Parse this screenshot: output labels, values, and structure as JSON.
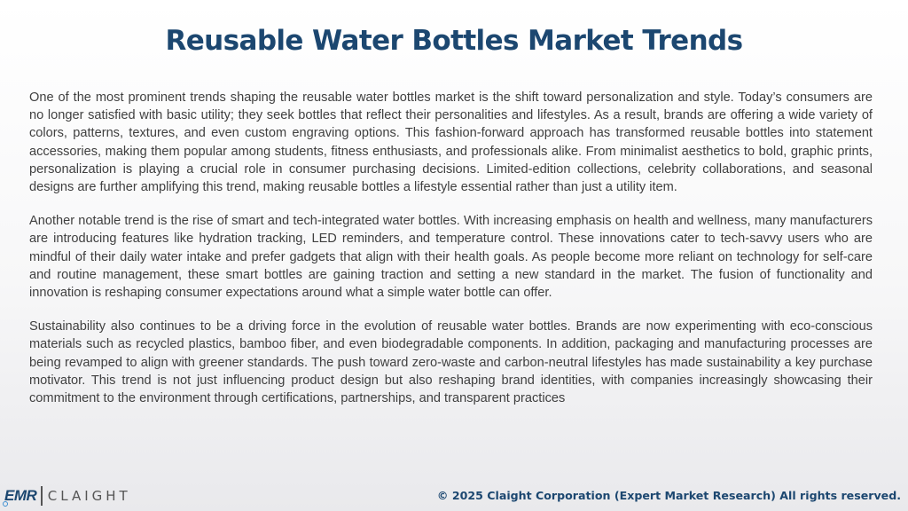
{
  "title": "Reusable Water Bottles Market Trends",
  "paragraphs": [
    "One of the most prominent trends shaping the reusable water bottles market is the shift toward personalization and style. Today’s consumers are no longer satisfied with basic utility; they seek bottles that reflect their personalities and lifestyles. As a result, brands are offering a wide variety of colors, patterns, textures, and even custom engraving options. This fashion-forward approach has transformed reusable bottles into statement accessories, making them popular among students, fitness enthusiasts, and professionals alike. From minimalist aesthetics to bold, graphic prints, personalization is playing a crucial role in consumer purchasing decisions. Limited-edition collections, celebrity collaborations, and seasonal designs are further amplifying this trend, making reusable bottles a lifestyle essential rather than just a utility item.",
    "Another notable trend is the rise of smart and tech-integrated water bottles. With increasing emphasis on health and wellness, many manufacturers are introducing features like hydration tracking, LED reminders, and temperature control. These innovations cater to tech-savvy users who are mindful of their daily water intake and prefer gadgets that align with their health goals. As people become more reliant on technology for self-care and routine management, these smart bottles are gaining traction and setting a new standard in the market. The fusion of functionality and innovation is reshaping consumer expectations around what a simple water bottle can offer.",
    "Sustainability also continues to be a driving force in the evolution of reusable water bottles. Brands are now experimenting with eco-conscious materials such as recycled plastics, bamboo fiber, and even biodegradable components. In addition, packaging and manufacturing processes are being revamped to align with greener standards. The push toward zero-waste and carbon-neutral lifestyles has made sustainability a key purchase motivator. This trend is not just influencing product design but also reshaping brand identities, with companies increasingly showcasing their commitment to the environment through certifications, partnerships, and transparent practices"
  ],
  "footer": {
    "logo_mark": "EMR",
    "logo_text": "CLAIGHT",
    "copyright": "© 2025 Claight Corporation (Expert Market Research) All rights reserved."
  },
  "colors": {
    "title": "#1c4770",
    "body_text": "#404040",
    "footer_text": "#1c4770",
    "logo_accent": "#3d8fd1"
  }
}
